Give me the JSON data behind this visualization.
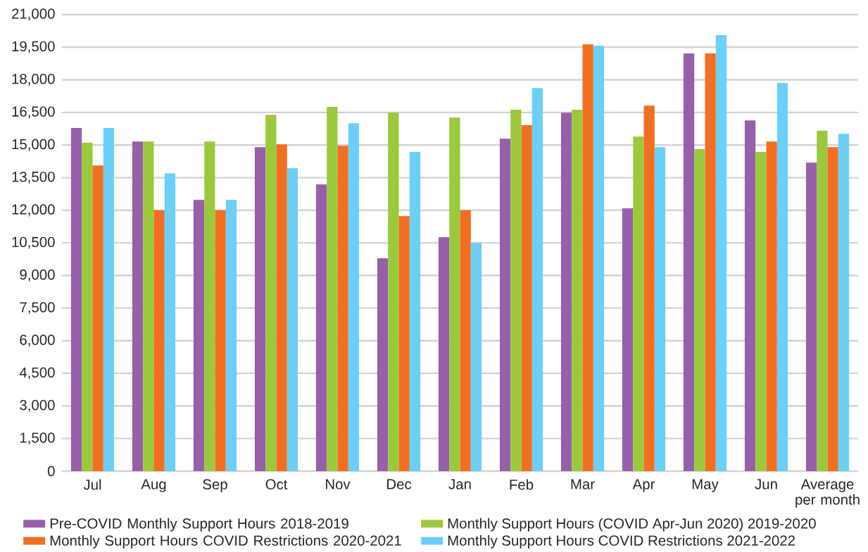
{
  "chart_data": {
    "type": "bar",
    "categories": [
      "Jul",
      "Aug",
      "Sep",
      "Oct",
      "Nov",
      "Dec",
      "Jan",
      "Feb",
      "Mar",
      "Apr",
      "May",
      "Jun",
      "Average per month"
    ],
    "series": [
      {
        "name": "Pre-COVID Monthly Support Hours 2018-2019",
        "color": "#975faa",
        "values": [
          15780,
          15160,
          12480,
          14900,
          13190,
          9790,
          10760,
          15290,
          16490,
          12090,
          19210,
          16130,
          14190
        ]
      },
      {
        "name": "Monthly Support Hours (COVID Apr-Jun 2020) 2019-2020",
        "color": "#9aca3c",
        "values": [
          15100,
          15160,
          15160,
          16390,
          16750,
          16490,
          16260,
          16620,
          16620,
          15390,
          14810,
          14680,
          15650
        ]
      },
      {
        "name": "Monthly Support Hours COVID Restrictions 2020-2021",
        "color": "#f26f21",
        "values": [
          14060,
          12000,
          12000,
          15030,
          14970,
          11730,
          12000,
          15910,
          19630,
          16810,
          19210,
          15160,
          14900
        ]
      },
      {
        "name": "Monthly Support Hours COVID Restrictions 2021-2022",
        "color": "#6ccff6",
        "values": [
          15780,
          13700,
          12480,
          13930,
          16000,
          14680,
          10500,
          17620,
          19570,
          14900,
          20050,
          17850,
          15520
        ]
      }
    ],
    "ylim": [
      0,
      21000
    ],
    "yticks": [
      0,
      {
        "value": 1500,
        "label": "1,500"
      },
      {
        "value": 3000,
        "label": "3,000"
      },
      {
        "value": 4500,
        "label": "4,500"
      },
      {
        "value": 6000,
        "label": "6,000"
      },
      {
        "value": 7500,
        "label": "7,500"
      },
      {
        "value": 9000,
        "label": "9,000"
      },
      {
        "value": 10500,
        "label": "10,500"
      },
      {
        "value": 12000,
        "label": "12,000"
      },
      {
        "value": 13500,
        "label": "13,500"
      },
      {
        "value": 15000,
        "label": "15,000"
      },
      {
        "value": 16500,
        "label": "16,500"
      },
      {
        "value": 18000,
        "label": "18,000"
      },
      {
        "value": 19500,
        "label": "19,500"
      },
      {
        "value": 21000,
        "label": "21,000"
      }
    ],
    "grid": "y",
    "legend": "bottom"
  }
}
